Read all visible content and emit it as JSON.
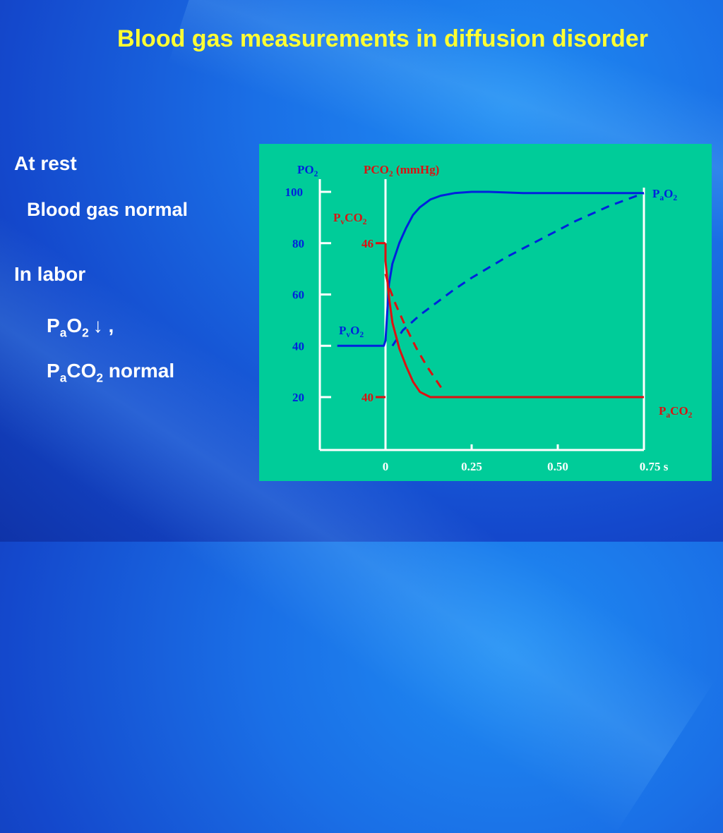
{
  "slide": {
    "title": "Blood gas measurements in diffusion disorder",
    "at_rest": "At rest",
    "blood_gas_normal": "Blood gas normal",
    "in_labor": "In labor",
    "pao2_line": {
      "p": "P",
      "sub_a": "a",
      "o": "O",
      "sub_2": "2",
      "arrow": "↓",
      "comma": " ,"
    },
    "paco2_line": {
      "p": "P",
      "sub_a": "a",
      "co": "CO",
      "sub_2": "2",
      "rest": " normal"
    }
  },
  "colors": {
    "title": "#ffff33",
    "panel": "#00cc99",
    "o2_curve": "#0022dd",
    "co2_curve": "#dd1111",
    "axis": "#ffffff"
  },
  "chart_data": {
    "type": "line",
    "title": "",
    "y_label_po2": {
      "main": "PO",
      "sub": "2"
    },
    "y_label_pco2": {
      "main": "PCO",
      "sub": "2",
      "unit": " (mmHg)"
    },
    "x_unit": "s",
    "po2_ticks": [
      20,
      40,
      60,
      80,
      100
    ],
    "po2_ylim": [
      0,
      110
    ],
    "x_ticks": [
      {
        "value": 0,
        "label": "0"
      },
      {
        "value": 0.25,
        "label": "0.25"
      },
      {
        "value": 0.5,
        "label": "0.50"
      },
      {
        "value": 0.75,
        "label": "0.75 s"
      }
    ],
    "xlim": [
      -0.14,
      0.75
    ],
    "co2_ticks": [
      {
        "value": 46,
        "label": "46"
      },
      {
        "value": 40,
        "label": "40"
      }
    ],
    "co2_scale": {
      "value_46_at_po2": 80,
      "value_40_at_po2": 20
    },
    "annotations": [
      {
        "name": "pao2-label",
        "main": "P",
        "sub": "a",
        "main2": "O",
        "sub2": "2",
        "color": "#0022dd"
      },
      {
        "name": "pvco2-label",
        "main": "P",
        "sub": "v",
        "main2": "CO",
        "sub2": "2",
        "color": "#dd1111"
      },
      {
        "name": "pvo2-label",
        "main": "P",
        "sub": "v",
        "main2": "O",
        "sub2": "2",
        "color": "#0022dd"
      },
      {
        "name": "paco2-label",
        "main": "P",
        "sub": "a",
        "main2": "CO",
        "sub2": "2",
        "color": "#dd1111"
      }
    ],
    "series": [
      {
        "name": "PO2 (normal)",
        "color": "#0022dd",
        "dash": false,
        "axis": "po2",
        "x": [
          -0.14,
          -0.005,
          0.0,
          0.01,
          0.02,
          0.04,
          0.06,
          0.08,
          0.1,
          0.13,
          0.16,
          0.2,
          0.25,
          0.3,
          0.4,
          0.5,
          0.6,
          0.75
        ],
        "y": [
          40,
          40,
          42,
          64,
          72,
          80,
          86,
          91,
          94,
          97,
          98.5,
          99.5,
          100,
          100,
          99.5,
          99.5,
          99.5,
          99.5
        ]
      },
      {
        "name": "PO2 (diffusion disorder)",
        "color": "#0022dd",
        "dash": true,
        "axis": "po2",
        "x": [
          0.02,
          0.05,
          0.1,
          0.15,
          0.2,
          0.25,
          0.3,
          0.35,
          0.4,
          0.45,
          0.5,
          0.55,
          0.6,
          0.65,
          0.7,
          0.75
        ],
        "y": [
          40,
          46,
          52,
          57,
          62,
          66.5,
          70.5,
          74.5,
          78,
          81.5,
          85,
          88.5,
          91.5,
          94.5,
          97,
          99.5
        ]
      },
      {
        "name": "PCO2 (normal)",
        "color": "#dd1111",
        "dash": false,
        "axis": "co2",
        "x": [
          0.0,
          0.0,
          0.01,
          0.02,
          0.04,
          0.06,
          0.08,
          0.1,
          0.13,
          0.2,
          0.3,
          0.5,
          0.75
        ],
        "y": [
          46,
          45.3,
          43.9,
          42.9,
          41.9,
          41.2,
          40.6,
          40.2,
          40,
          40,
          40,
          40,
          40
        ]
      },
      {
        "name": "PCO2 (diffusion disorder)",
        "color": "#dd1111",
        "dash": true,
        "axis": "co2",
        "x": [
          0.0,
          0.01,
          0.03,
          0.06,
          0.09,
          0.12,
          0.15,
          0.17
        ],
        "y": [
          44.8,
          44.3,
          43.6,
          42.7,
          41.9,
          41.2,
          40.6,
          40.2
        ]
      }
    ]
  }
}
